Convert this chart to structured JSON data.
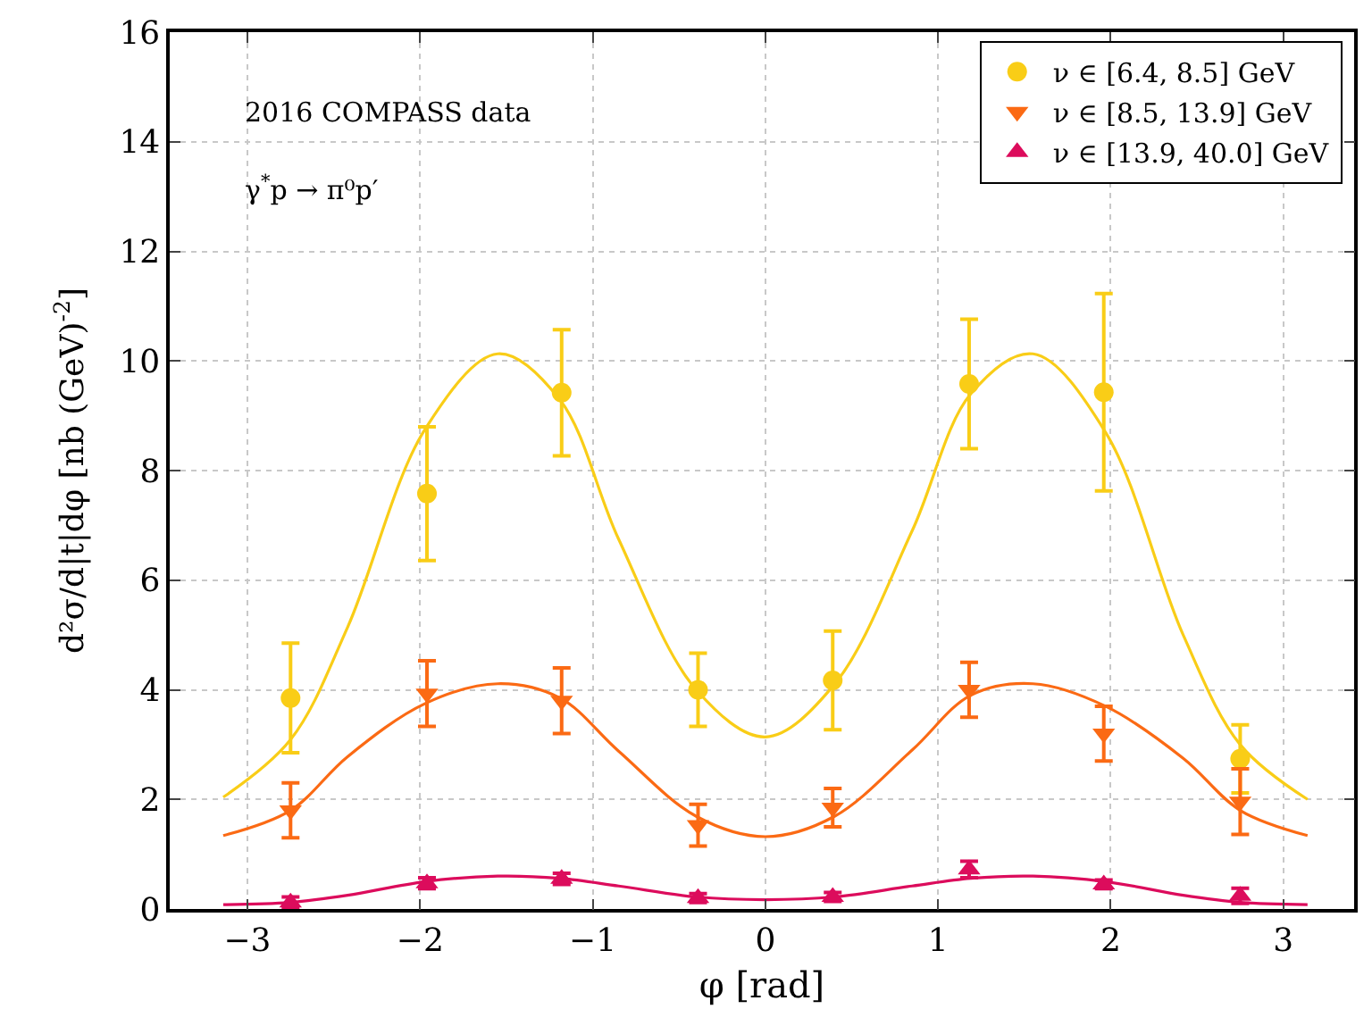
{
  "chart_data": {
    "type": "scatter",
    "xlabel": "φ [rad]",
    "ylabel": "d²σ/d|t|dφ [nb (GeV)$^{-2}$]",
    "annotations": [
      "2016 COMPASS data",
      "γ$^{*}$p → π⁰p′"
    ],
    "xlim": [
      -3.45,
      3.41
    ],
    "ylim": [
      0,
      16
    ],
    "xticks": [
      -3,
      -2,
      -1,
      0,
      1,
      2,
      3
    ],
    "yticks": [
      0,
      2,
      4,
      6,
      8,
      10,
      12,
      14,
      16
    ],
    "grid": true,
    "legend": "top right",
    "x": [
      -2.75,
      -1.96,
      -1.18,
      -0.39,
      0.39,
      1.18,
      1.96,
      2.75
    ],
    "series": [
      {
        "name": "ν ∈ [6.4, 8.5] GeV",
        "color": "#f9cd17",
        "marker": "circle",
        "values": [
          3.85,
          7.58,
          9.42,
          4.0,
          4.17,
          9.58,
          9.43,
          2.74
        ],
        "errors": [
          1.0,
          1.22,
          1.15,
          0.67,
          0.9,
          1.18,
          1.8,
          0.62
        ]
      },
      {
        "name": "ν ∈ [8.5, 13.9] GeV",
        "color": "#fb6a14",
        "marker": "triangle-down",
        "values": [
          1.8,
          3.93,
          3.8,
          1.53,
          1.85,
          4.0,
          3.2,
          1.96
        ],
        "errors": [
          0.5,
          0.6,
          0.6,
          0.38,
          0.35,
          0.5,
          0.5,
          0.6
        ]
      },
      {
        "name": "ν ∈ [13.9, 40.0] GeV",
        "color": "#dc0c5c",
        "marker": "triangle",
        "values": [
          0.12,
          0.47,
          0.55,
          0.2,
          0.22,
          0.72,
          0.45,
          0.24
        ],
        "errors": [
          0.1,
          0.1,
          0.1,
          0.08,
          0.08,
          0.15,
          0.08,
          0.14
        ]
      },
      {
        "type": "line",
        "color": "#f9cd17",
        "marker": "none",
        "x": [
          -3.14,
          -2.75,
          -2.42,
          -1.97,
          -1.55,
          -1.19,
          -0.85,
          -0.4,
          0,
          0.4,
          0.85,
          1.19,
          1.55,
          1.97,
          2.42,
          2.75,
          3.14
        ],
        "values": [
          2.04,
          3.09,
          5.14,
          8.76,
          10.13,
          9.29,
          6.75,
          4.0,
          3.14,
          4.1,
          6.9,
          9.4,
          10.13,
          8.7,
          5.0,
          3.0,
          2.0
        ]
      },
      {
        "type": "line",
        "color": "#fb6a14",
        "marker": "none",
        "x": [
          -3.14,
          -2.75,
          -2.42,
          -1.97,
          -1.55,
          -1.19,
          -0.85,
          -0.4,
          0,
          0.4,
          0.85,
          1.19,
          1.55,
          1.97,
          2.42,
          2.75,
          3.14
        ],
        "values": [
          1.34,
          1.8,
          2.78,
          3.75,
          4.11,
          3.85,
          2.88,
          1.69,
          1.32,
          1.69,
          2.9,
          3.9,
          4.11,
          3.7,
          2.75,
          1.8,
          1.34
        ]
      },
      {
        "type": "line",
        "color": "#dc0c5c",
        "marker": "none",
        "x": [
          -3.14,
          -2.75,
          -2.42,
          -1.97,
          -1.55,
          -1.19,
          -0.85,
          -0.4,
          0,
          0.4,
          0.85,
          1.19,
          1.55,
          1.97,
          2.42,
          2.75,
          3.14
        ],
        "values": [
          0.08,
          0.12,
          0.25,
          0.5,
          0.6,
          0.56,
          0.42,
          0.22,
          0.17,
          0.22,
          0.42,
          0.56,
          0.6,
          0.5,
          0.25,
          0.12,
          0.08
        ]
      }
    ]
  }
}
